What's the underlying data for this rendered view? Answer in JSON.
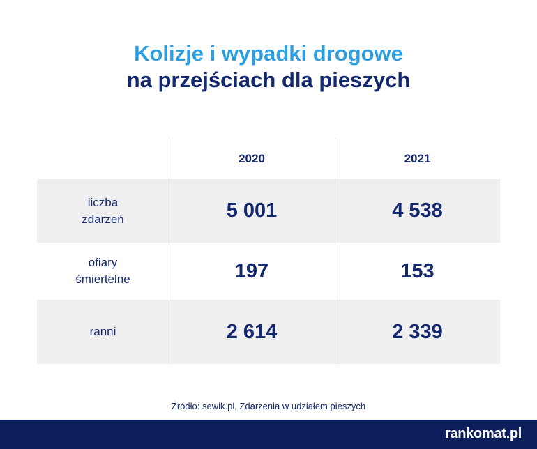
{
  "title": {
    "line1": "Kolizje i wypadki drogowe",
    "line2": "na przejściach dla pieszych"
  },
  "chart_data": {
    "type": "table",
    "columns": [
      "2020",
      "2021"
    ],
    "rows": [
      {
        "label": "liczba zdarzeń",
        "label_line1": "liczba",
        "label_line2": "zdarzeń",
        "values": [
          5001,
          4538
        ],
        "display": [
          "5 001",
          "4 538"
        ]
      },
      {
        "label": "ofiary śmiertelne",
        "label_line1": "ofiary",
        "label_line2": "śmiertelne",
        "values": [
          197,
          153
        ],
        "display": [
          "197",
          "153"
        ]
      },
      {
        "label": "ranni",
        "label_line1": "ranni",
        "label_line2": "",
        "values": [
          2614,
          2339
        ],
        "display": [
          "2 614",
          "2 339"
        ]
      }
    ]
  },
  "source": "Źródło: sewik.pl, Zdarzenia w udziałem pieszych",
  "footer": {
    "brand": "rankomat.pl"
  },
  "colors": {
    "title_accent": "#2d9fe0",
    "navy": "#14286e",
    "row_shade": "#efefef",
    "footer_bg": "#0c1f5c"
  }
}
